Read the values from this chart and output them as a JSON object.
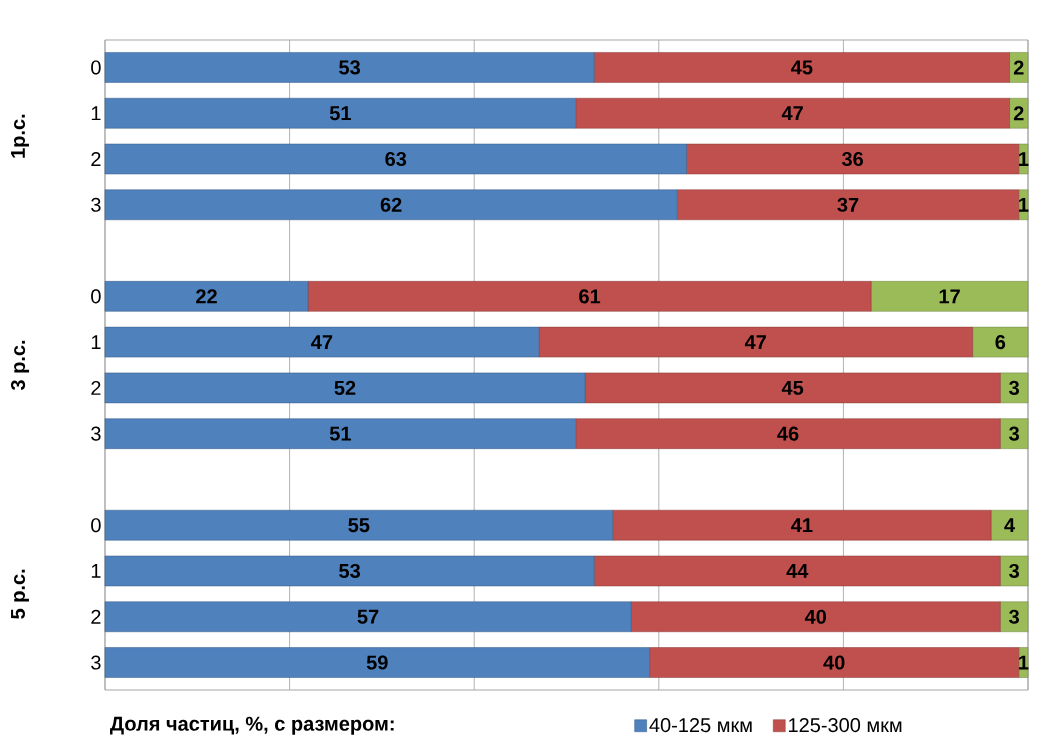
{
  "chart_data": {
    "type": "bar",
    "orientation": "horizontal",
    "stacked": true,
    "categories": [
      "0",
      "1",
      "2",
      "3",
      null,
      "0",
      "1",
      "2",
      "3",
      null,
      "0",
      "1",
      "2",
      "3"
    ],
    "series": [
      {
        "name": "40-125 мкм",
        "color": "#4f81bd",
        "values": [
          53,
          51,
          63,
          62,
          null,
          22,
          47,
          52,
          51,
          null,
          55,
          53,
          57,
          59
        ]
      },
      {
        "name": "125-300 мкм",
        "color": "#c0504d",
        "values": [
          45,
          47,
          36,
          37,
          null,
          61,
          47,
          45,
          46,
          null,
          41,
          44,
          40,
          40
        ]
      },
      {
        "color": "#9bbb59",
        "values": [
          2,
          2,
          1,
          1,
          null,
          17,
          6,
          3,
          3,
          null,
          4,
          3,
          3,
          1
        ]
      }
    ],
    "xlim": [
      0,
      100
    ],
    "xticks": [
      {
        "value": 0,
        "label": null
      },
      {
        "value": 20,
        "label": null
      },
      {
        "value": 40,
        "label": null
      },
      {
        "value": 60,
        "label": null
      },
      {
        "value": 80,
        "label": null
      },
      {
        "value": 100,
        "label": null
      }
    ],
    "tick_labels": "y",
    "grid": "x",
    "data_labels": true,
    "legend": "bottom",
    "legend_title": "Доля частиц, %, с размером:",
    "annotations": [
      "1р.с.",
      "3 р.с.",
      "5 р.с."
    ]
  }
}
